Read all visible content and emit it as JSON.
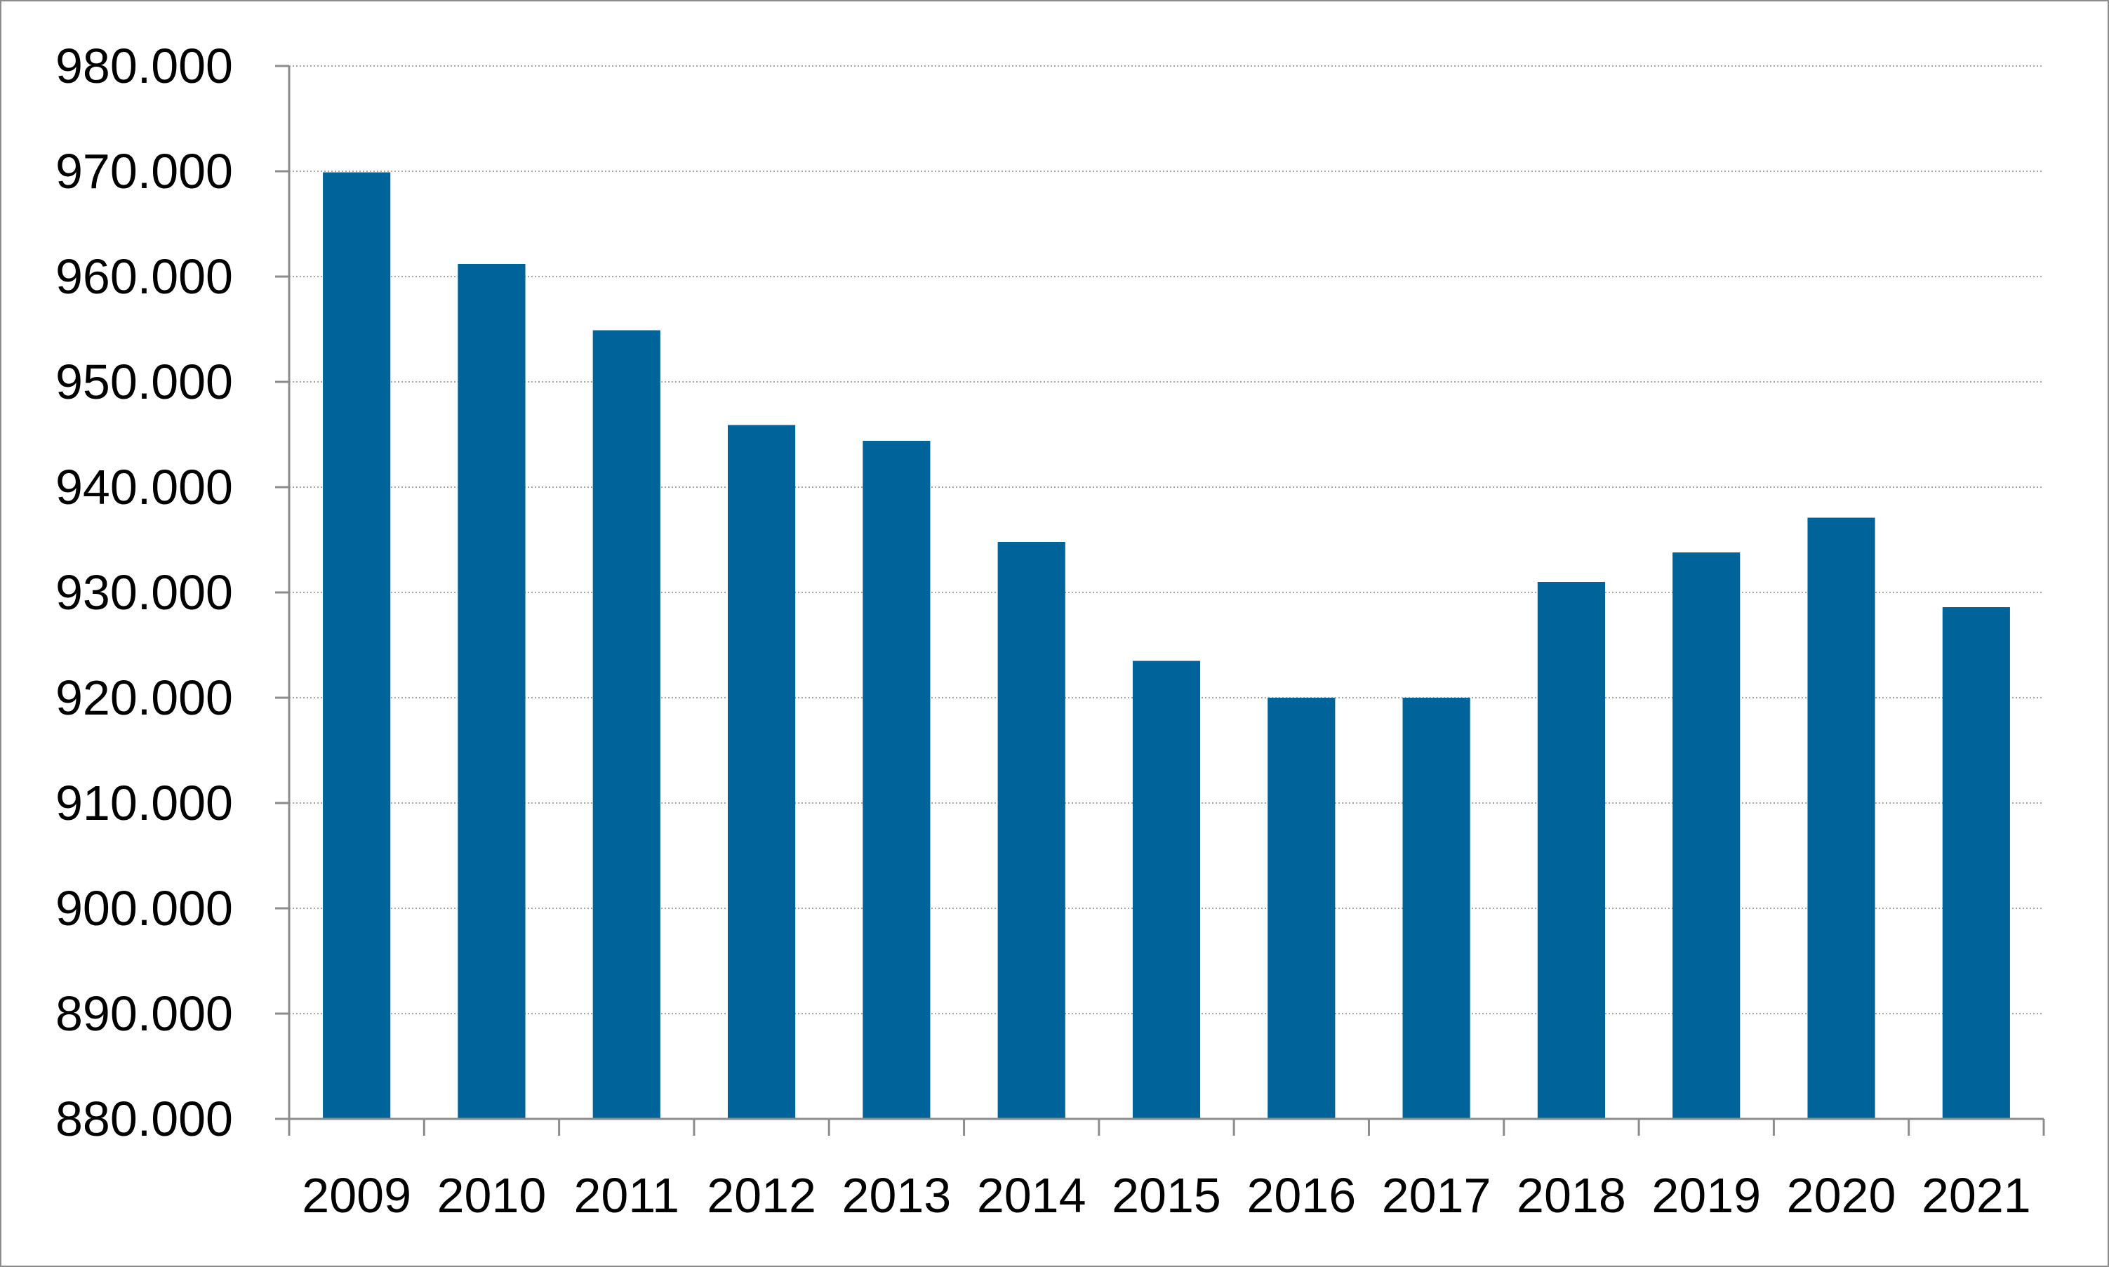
{
  "chart_data": {
    "type": "bar",
    "title": "",
    "xlabel": "",
    "ylabel": "",
    "categories": [
      "2009",
      "2010",
      "2011",
      "2012",
      "2013",
      "2014",
      "2015",
      "2016",
      "2017",
      "2018",
      "2019",
      "2020",
      "2021"
    ],
    "values": [
      969900,
      961200,
      954900,
      945900,
      944400,
      934800,
      923500,
      920000,
      920000,
      931000,
      933800,
      937100,
      928600
    ],
    "ylim": [
      880000,
      980000
    ],
    "ytick_step": 10000,
    "ytick_labels": [
      "880.000",
      "890.000",
      "900.000",
      "910.000",
      "920.000",
      "930.000",
      "940.000",
      "950.000",
      "960.000",
      "970.000",
      "980.000"
    ],
    "grid": true,
    "legend": "none",
    "colors": {
      "bar": "#006399",
      "grid": "#a6a6a6",
      "axis": "#8c8c8c",
      "text": "#000000"
    }
  }
}
